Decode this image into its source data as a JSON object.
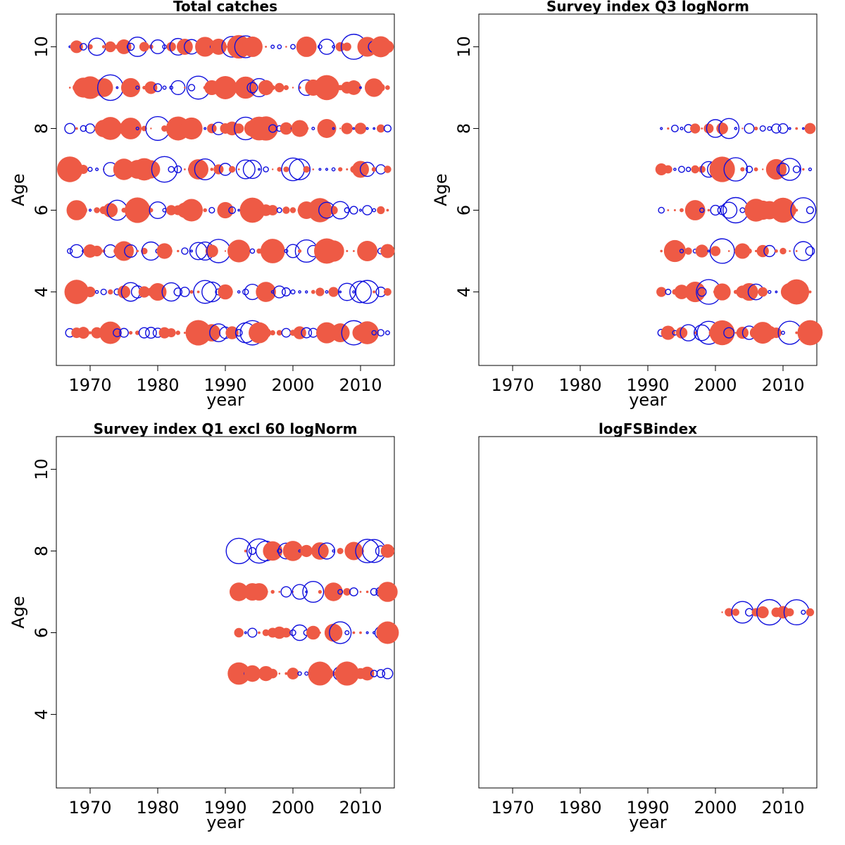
{
  "colors": {
    "negative_fill": "#EE5A45",
    "positive_stroke": "#1010DD",
    "frame": "#000000"
  },
  "chart_data": [
    {
      "type": "scatter",
      "subtype": "bubble-residuals",
      "title": "Total catches",
      "xlabel": "year",
      "ylabel": "Age",
      "xlim": [
        1965,
        2015
      ],
      "ylim": [
        2.2,
        10.8
      ],
      "xticks": [
        1970,
        1980,
        1990,
        2000,
        2010
      ],
      "yticks": [
        4,
        6,
        8,
        10
      ],
      "year_range": [
        1967,
        2014
      ],
      "ages": [
        3,
        4,
        5,
        6,
        7,
        8,
        9,
        10
      ],
      "legend": "none",
      "grid": false,
      "note": "filled red = negative residual, open blue = positive residual; size = magnitude"
    },
    {
      "type": "scatter",
      "subtype": "bubble-residuals",
      "title": "Survey index Q3 logNorm",
      "xlabel": "year",
      "ylabel": "Age",
      "xlim": [
        1965,
        2015
      ],
      "ylim": [
        2.2,
        10.8
      ],
      "xticks": [
        1970,
        1980,
        1990,
        2000,
        2010
      ],
      "yticks": [
        4,
        6,
        8,
        10
      ],
      "year_range": [
        1992,
        2014
      ],
      "ages": [
        3,
        4,
        5,
        6,
        7,
        8
      ],
      "legend": "none",
      "grid": false
    },
    {
      "type": "scatter",
      "subtype": "bubble-residuals",
      "title": "Survey index Q1 excl 60 logNorm",
      "xlabel": "year",
      "ylabel": "Age",
      "xlim": [
        1965,
        2015
      ],
      "ylim": [
        2.2,
        10.8
      ],
      "xticks": [
        1970,
        1980,
        1990,
        2000,
        2010
      ],
      "yticks": [
        4,
        6,
        8,
        10
      ],
      "year_range": [
        1992,
        2014
      ],
      "ages": [
        5,
        6,
        7,
        8
      ],
      "legend": "none",
      "grid": false
    },
    {
      "type": "scatter",
      "subtype": "bubble-residuals",
      "title": "logFSBindex",
      "xlabel": "year",
      "ylabel": "",
      "xlim": [
        1965,
        2015
      ],
      "ylim": [
        2.2,
        10.8
      ],
      "xticks": [
        1970,
        1980,
        1990,
        2000,
        2010
      ],
      "yticks": [],
      "year_range": [
        2001,
        2014
      ],
      "ages": [
        6.5
      ],
      "legend": "none",
      "grid": false
    }
  ]
}
